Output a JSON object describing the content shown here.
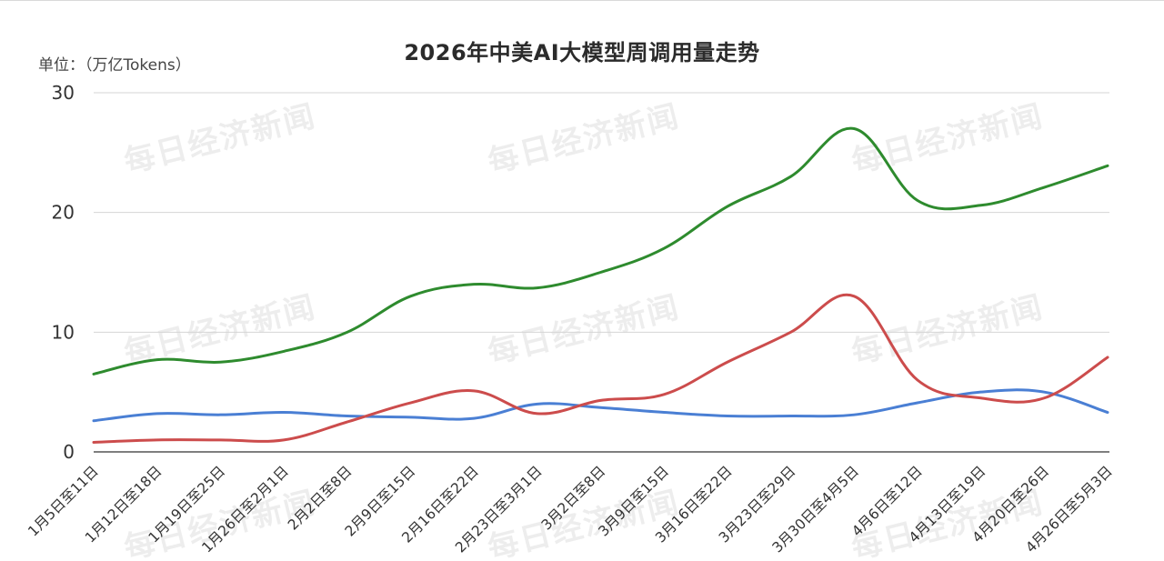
{
  "chart_data": {
    "type": "line",
    "title": "2026年中美AI大模型周调用量走势",
    "unit_label": "单位：（万亿Tokens）",
    "ylim": [
      0,
      30
    ],
    "yticks": [
      "0",
      "10",
      "20",
      "30"
    ],
    "ytick_values": [
      0,
      10,
      20,
      30
    ],
    "grid": true,
    "categories": [
      "1月5日至11日",
      "1月12日至18日",
      "1月19日至25日",
      "1月26日至2月1日",
      "2月2日至8日",
      "2月9日至15日",
      "2月16日至22日",
      "2月23日至3月1日",
      "3月2日至8日",
      "3月9日至15日",
      "3月16日至22日",
      "3月23日至29日",
      "3月30日至4月5日",
      "4月6日至12日",
      "4月13日至19日",
      "4月20日至26日",
      "4月26日至5月3日"
    ],
    "series": [
      {
        "color": "#2e8b2e",
        "values": [
          6.5,
          7.7,
          7.5,
          8.4,
          10.0,
          13.0,
          14.0,
          13.7,
          15.0,
          17.0,
          20.5,
          23.0,
          27.0,
          21.0,
          20.6,
          22.1,
          23.9
        ]
      },
      {
        "color": "#cc4c4c",
        "values": [
          0.8,
          1.0,
          1.0,
          1.0,
          2.5,
          4.1,
          5.1,
          3.2,
          4.3,
          4.8,
          7.5,
          10.0,
          13.0,
          6.0,
          4.5,
          4.5,
          7.9
        ]
      },
      {
        "color": "#4a7fd4",
        "values": [
          2.6,
          3.2,
          3.1,
          3.3,
          3.0,
          2.9,
          2.8,
          4.0,
          3.7,
          3.3,
          3.0,
          3.0,
          3.1,
          4.1,
          5.0,
          5.0,
          3.3
        ]
      }
    ]
  },
  "watermark": "每日经济新闻"
}
